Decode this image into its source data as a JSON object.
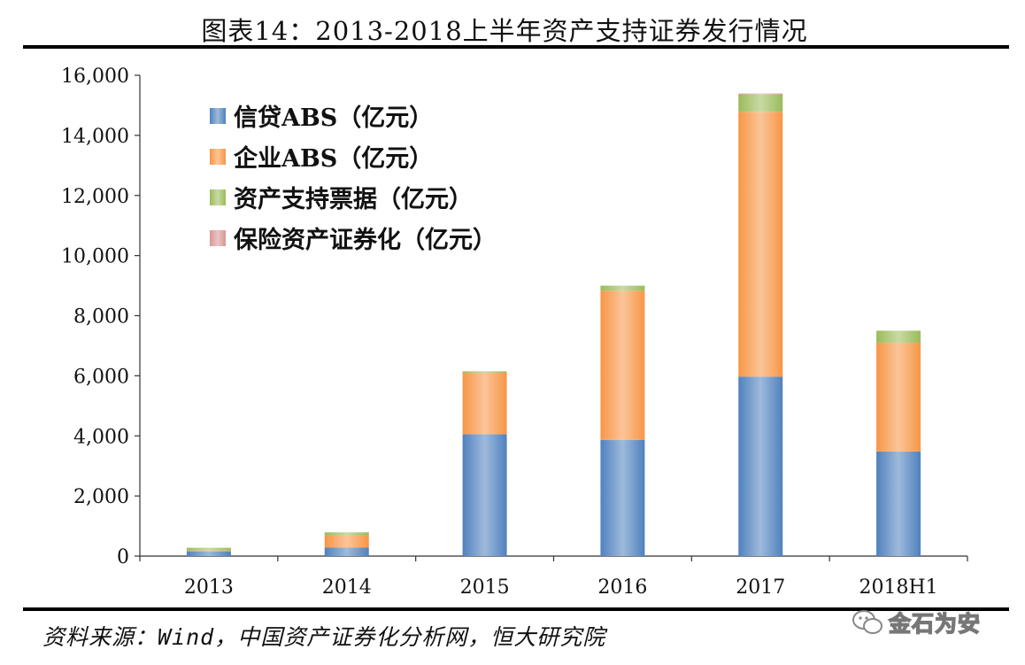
{
  "title": "图表14：2013-2018上半年资产支持证券发行情况",
  "source": "资料来源：Wind，中国资产证券化分析网，恒大研究院",
  "watermark": "金石为安",
  "colors": {
    "credit_abs": "#4f81bd",
    "enterprise_abs": "#f79646",
    "abn": "#9bbb59",
    "insurance": "#d99694"
  },
  "chart_data": {
    "type": "bar",
    "stacked": true,
    "categories": [
      "2013",
      "2014",
      "2015",
      "2016",
      "2017",
      "2018H1"
    ],
    "series": [
      {
        "name": "信贷ABS（亿元）",
        "values": [
          158,
          280,
          4056,
          3868,
          5972,
          3480
        ]
      },
      {
        "name": "企业ABS（亿元）",
        "values": [
          28,
          400,
          2042,
          4961,
          8811,
          3620
        ]
      },
      {
        "name": "资产支持票据（亿元）",
        "values": [
          90,
          110,
          50,
          170,
          580,
          400
        ]
      },
      {
        "name": "保险资产证券化（亿元）",
        "values": [
          0,
          0,
          0,
          0,
          30,
          0
        ]
      }
    ],
    "ylim": [
      0,
      16000
    ],
    "yticks": [
      "0",
      "2,000",
      "4,000",
      "6,000",
      "8,000",
      "10,000",
      "12,000",
      "14,000",
      "16,000"
    ],
    "legend_position": "top-left",
    "grid": false
  }
}
